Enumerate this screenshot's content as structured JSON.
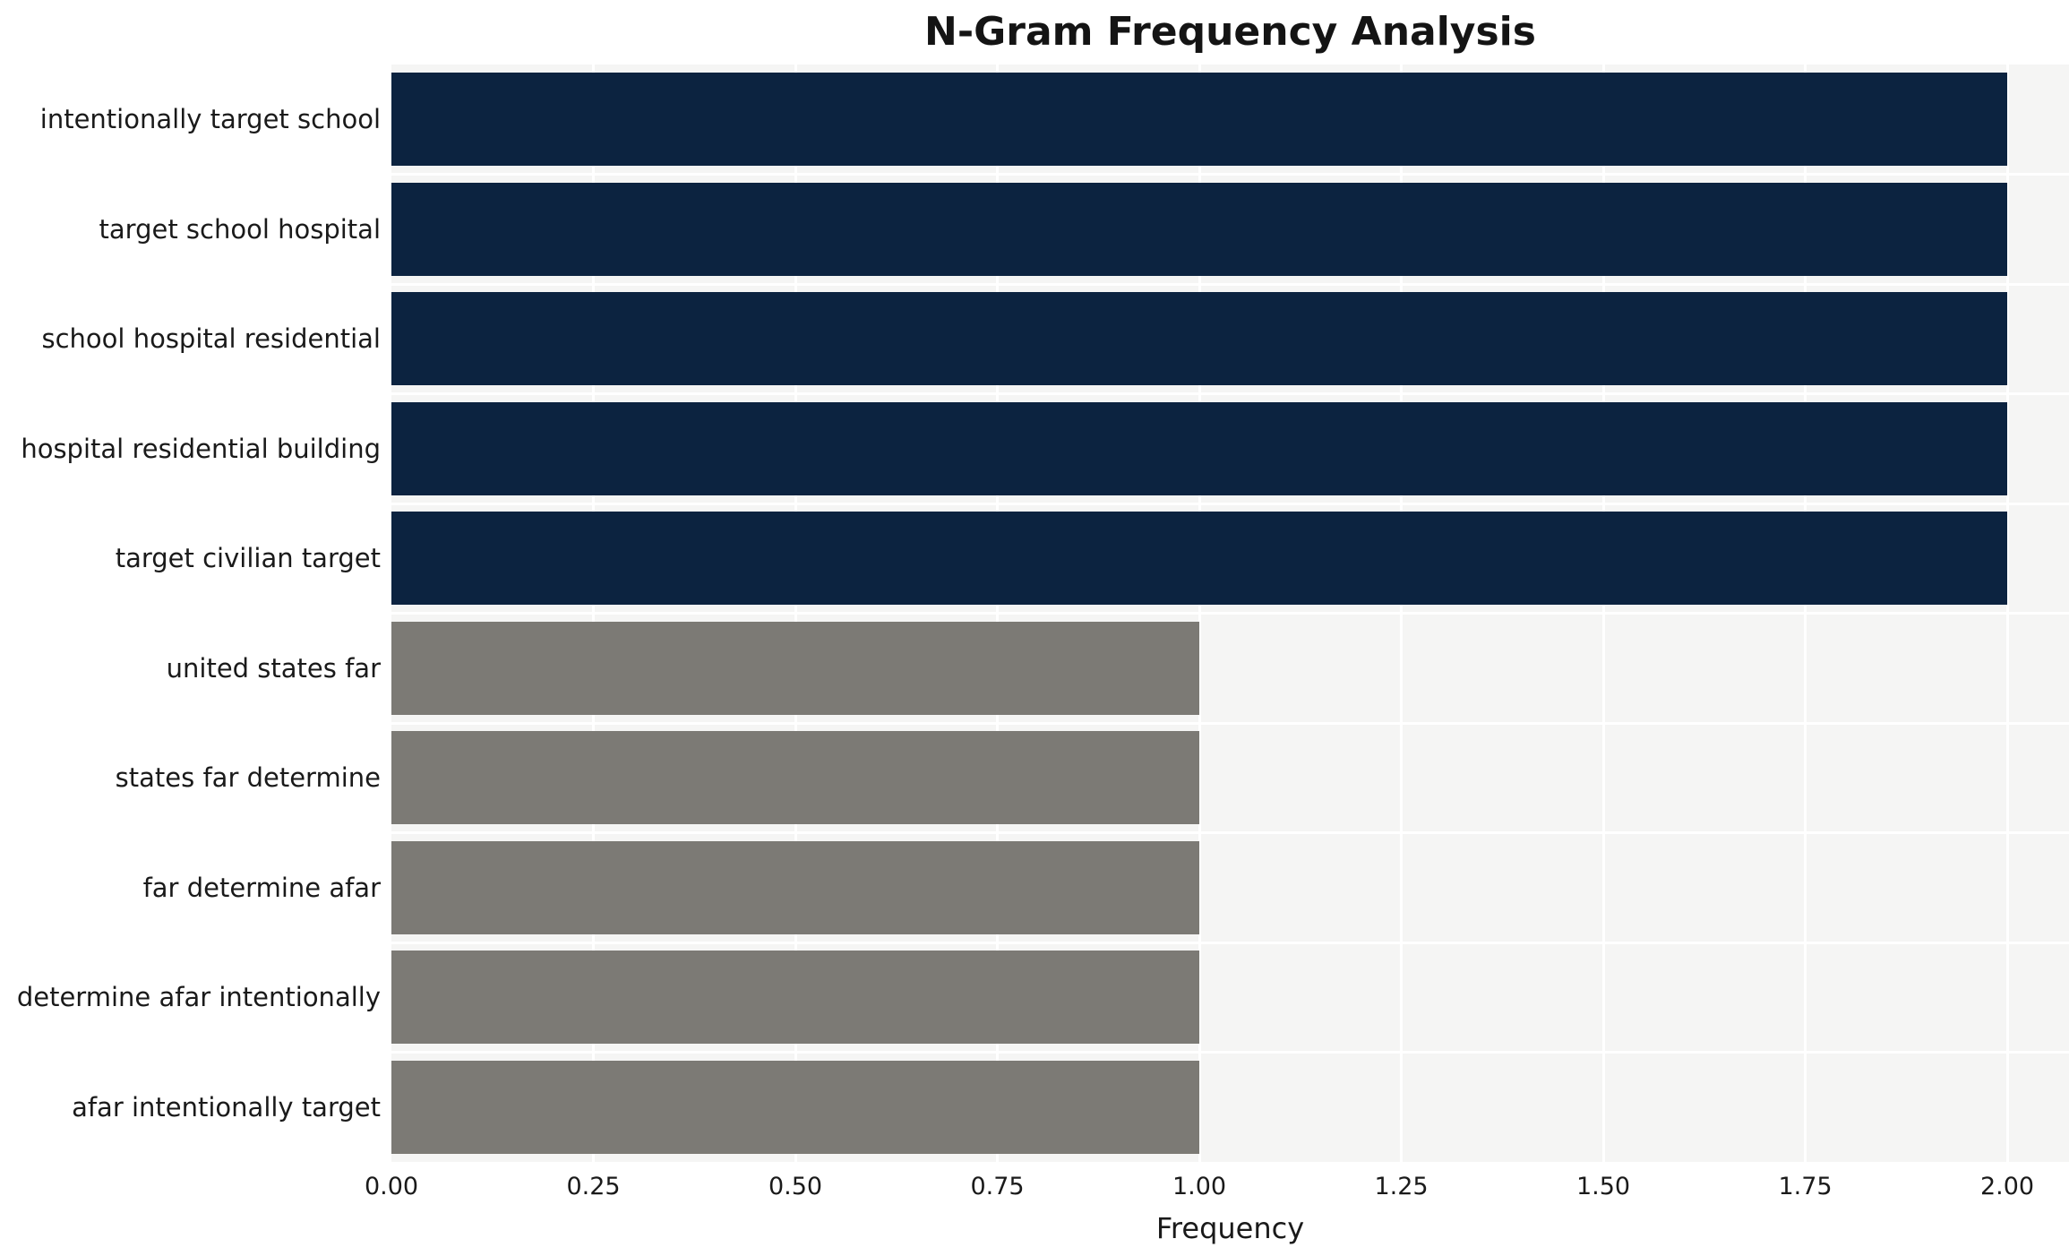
{
  "chart_data": {
    "type": "bar",
    "orientation": "horizontal",
    "title": "N-Gram Frequency Analysis",
    "xlabel": "Frequency",
    "ylabel": "",
    "categories": [
      "intentionally target school",
      "target school hospital",
      "school hospital residential",
      "hospital residential building",
      "target civilian target",
      "united states far",
      "states far determine",
      "far determine afar",
      "determine afar intentionally",
      "afar intentionally target"
    ],
    "values": [
      2,
      2,
      2,
      2,
      2,
      1,
      1,
      1,
      1,
      1
    ],
    "bar_colors": [
      "#0c2340",
      "#0c2340",
      "#0c2340",
      "#0c2340",
      "#0c2340",
      "#7c7a75",
      "#7c7a75",
      "#7c7a75",
      "#7c7a75",
      "#7c7a75"
    ],
    "xlim": [
      0,
      2.0
    ],
    "xticks": [
      "0.00",
      "0.25",
      "0.50",
      "0.75",
      "1.00",
      "1.25",
      "1.50",
      "1.75",
      "2.00"
    ],
    "grid": "on",
    "legend": "none",
    "plot_background": "#f5f5f4",
    "gridline_color": "#ffffff"
  }
}
